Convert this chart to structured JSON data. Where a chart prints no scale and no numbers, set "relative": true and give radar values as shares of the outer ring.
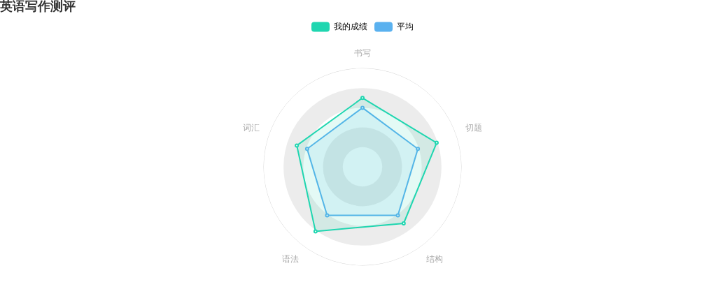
{
  "chart_data": {
    "type": "radar",
    "title": "英语写作测评",
    "categories": [
      "书写",
      "切题",
      "结构",
      "语法",
      "词汇"
    ],
    "relative": true,
    "grid": true,
    "legend": "top",
    "series": [
      {
        "name": "我的成绩",
        "color": "#1fd6b0",
        "values": [
          0.7,
          0.79,
          0.71,
          0.81,
          0.7
        ]
      },
      {
        "name": "平均",
        "color": "#5ab1ef",
        "values": [
          0.6,
          0.59,
          0.61,
          0.61,
          0.59
        ]
      }
    ]
  }
}
